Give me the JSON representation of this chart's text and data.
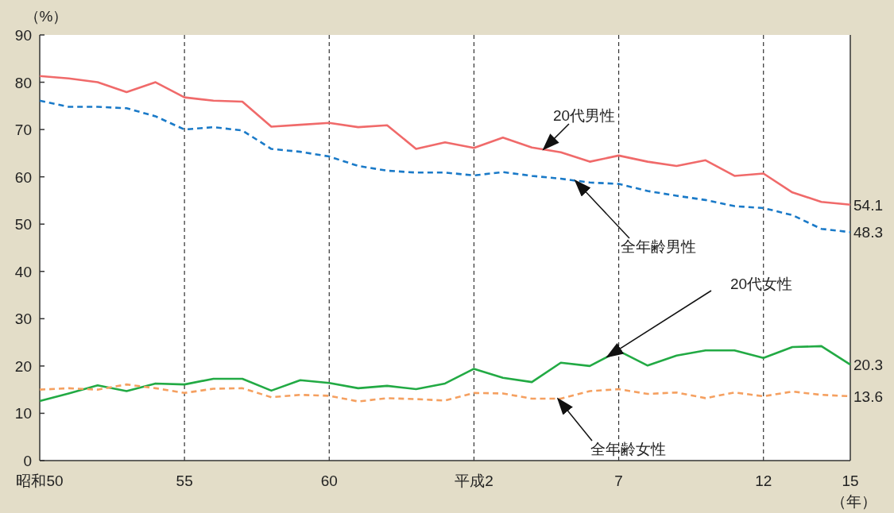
{
  "chart_data": {
    "type": "line",
    "ylabel": "（%）",
    "xlabel": "（年）",
    "categories": [
      "昭和50",
      null,
      null,
      null,
      null,
      "55",
      null,
      null,
      null,
      null,
      "60",
      null,
      null,
      null,
      null,
      "平成2",
      null,
      null,
      null,
      null,
      "7",
      null,
      null,
      null,
      null,
      "12",
      null,
      null,
      "15"
    ],
    "ylim": [
      0,
      90
    ],
    "yticks": [
      0,
      10,
      20,
      30,
      40,
      50,
      60,
      70,
      80,
      90
    ],
    "grid": "x",
    "legend": false,
    "marker": "none",
    "series": [
      {
        "name": "20代男性",
        "color": "#f06a6a",
        "line_style": "solid",
        "values": [
          81.3,
          80.8,
          80.0,
          77.9,
          80.0,
          76.8,
          76.1,
          75.9,
          70.6,
          71.0,
          71.4,
          70.5,
          70.9,
          65.9,
          67.3,
          66.1,
          68.3,
          66.2,
          65.2,
          63.2,
          64.5,
          63.2,
          62.3,
          63.5,
          60.2,
          60.7,
          56.7,
          54.7,
          54.1
        ],
        "value_labels": [
          null,
          null,
          null,
          null,
          null,
          null,
          null,
          null,
          null,
          null,
          null,
          null,
          null,
          null,
          null,
          null,
          null,
          null,
          null,
          null,
          null,
          null,
          null,
          null,
          null,
          null,
          null,
          null,
          "54.1"
        ]
      },
      {
        "name": "全年齢男性",
        "color": "#1a7ac8",
        "line_style": "dashed",
        "values": [
          76.1,
          74.8,
          74.8,
          74.5,
          72.8,
          70.0,
          70.5,
          69.8,
          65.9,
          65.3,
          64.3,
          62.3,
          61.3,
          60.9,
          60.9,
          60.3,
          61.0,
          60.2,
          59.6,
          58.8,
          58.5,
          57.0,
          56.0,
          55.1,
          53.8,
          53.4,
          51.9,
          49.0,
          48.3
        ],
        "value_labels": [
          null,
          null,
          null,
          null,
          null,
          null,
          null,
          null,
          null,
          null,
          null,
          null,
          null,
          null,
          null,
          null,
          null,
          null,
          null,
          null,
          null,
          null,
          null,
          null,
          null,
          null,
          null,
          null,
          "48.3"
        ]
      },
      {
        "name": "20代女性",
        "color": "#22aa44",
        "line_style": "solid",
        "values": [
          12.6,
          14.2,
          15.9,
          14.7,
          16.3,
          16.1,
          17.3,
          17.3,
          14.8,
          17.0,
          16.4,
          15.3,
          15.8,
          15.1,
          16.3,
          19.4,
          17.5,
          16.6,
          20.7,
          20.0,
          23.2,
          20.1,
          22.2,
          23.3,
          23.3,
          21.7,
          24.0,
          24.2,
          20.3
        ],
        "value_labels": [
          null,
          null,
          null,
          null,
          null,
          null,
          null,
          null,
          null,
          null,
          null,
          null,
          null,
          null,
          null,
          null,
          null,
          null,
          null,
          null,
          null,
          null,
          null,
          null,
          null,
          null,
          null,
          null,
          "20.3"
        ]
      },
      {
        "name": "全年齢女性",
        "color": "#f5a060",
        "line_style": "dashed",
        "values": [
          15.0,
          15.3,
          15.0,
          16.1,
          15.3,
          14.3,
          15.2,
          15.3,
          13.4,
          13.9,
          13.7,
          12.5,
          13.2,
          13.0,
          12.7,
          14.3,
          14.2,
          13.1,
          13.1,
          14.7,
          15.1,
          14.1,
          14.4,
          13.2,
          14.4,
          13.6,
          14.6,
          13.9,
          13.6
        ],
        "value_labels": [
          null,
          null,
          null,
          null,
          null,
          null,
          null,
          null,
          null,
          null,
          null,
          null,
          null,
          null,
          null,
          null,
          null,
          null,
          null,
          null,
          null,
          null,
          null,
          null,
          null,
          null,
          null,
          null,
          "13.6"
        ]
      }
    ]
  }
}
